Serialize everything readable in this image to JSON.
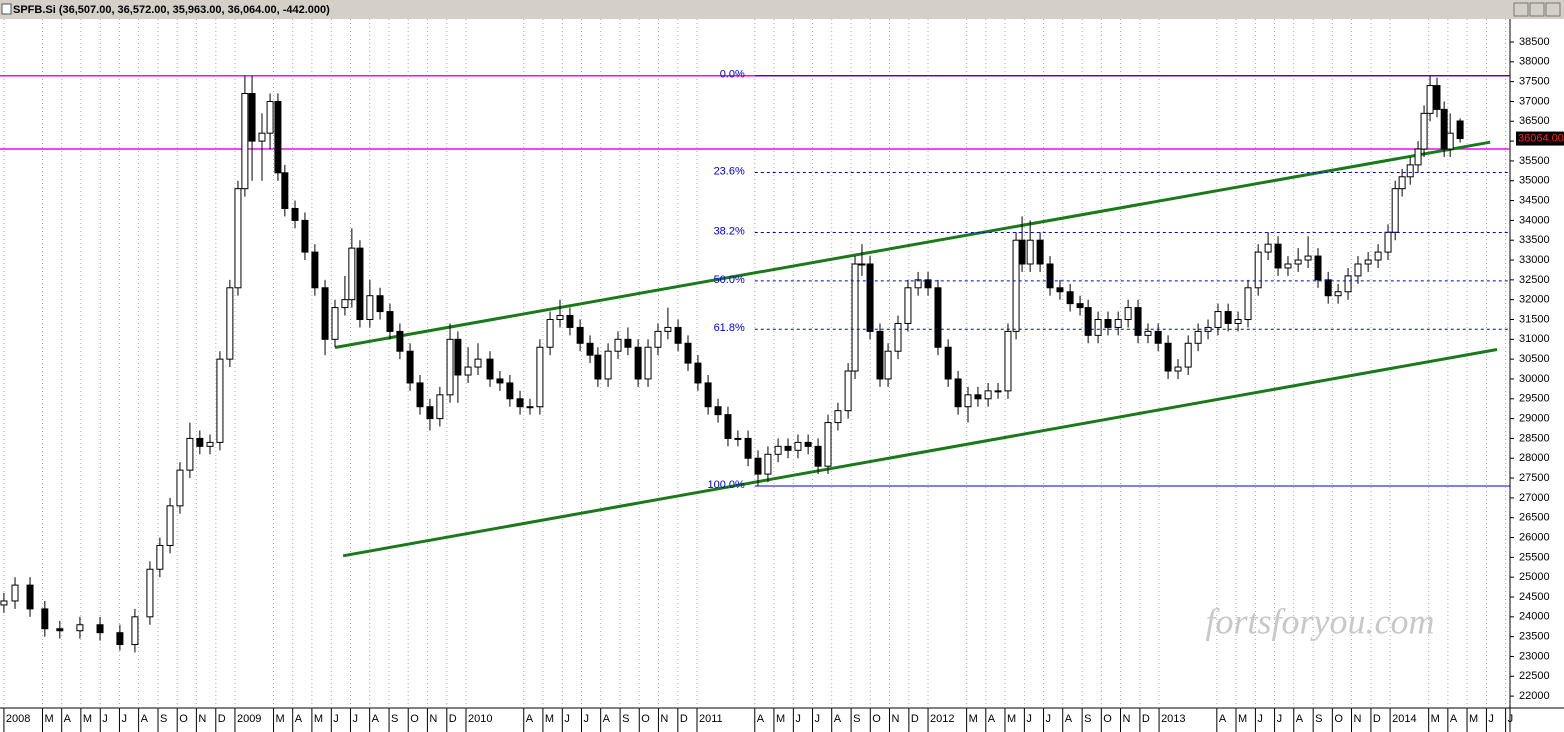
{
  "chart_data": {
    "type": "candlestick",
    "title": "SPFB.Si (36,507.00, 36,572.00, 35,963.00, 36,064.00, -442.000)",
    "watermark": "fortsforyou.com",
    "last_price_label": "36064.00",
    "x": [
      2008.0,
      2008.048,
      2008.113,
      2008.177,
      2008.242,
      2008.329,
      2008.416,
      2008.502,
      2008.567,
      2008.632,
      2008.675,
      2008.719,
      2008.762,
      2008.805,
      2008.848,
      2008.892,
      2008.935,
      2008.978,
      2009.013,
      2009.043,
      2009.074,
      2009.117,
      2009.152,
      2009.186,
      2009.216,
      2009.26,
      2009.303,
      2009.346,
      2009.39,
      2009.433,
      2009.476,
      2009.506,
      2009.541,
      2009.584,
      2009.628,
      2009.671,
      2009.714,
      2009.758,
      2009.801,
      2009.844,
      2009.887,
      2009.931,
      2009.965,
      2010.009,
      2010.052,
      2010.104,
      2010.147,
      2010.19,
      2010.234,
      2010.277,
      2010.32,
      2010.364,
      2010.407,
      2010.45,
      2010.494,
      2010.537,
      2010.571,
      2010.615,
      2010.658,
      2010.701,
      2010.745,
      2010.788,
      2010.831,
      2010.874,
      2010.918,
      2010.961,
      2011.004,
      2011.048,
      2011.091,
      2011.134,
      2011.177,
      2011.221,
      2011.264,
      2011.307,
      2011.351,
      2011.394,
      2011.437,
      2011.481,
      2011.524,
      2011.567,
      2011.61,
      2011.654,
      2011.684,
      2011.714,
      2011.749,
      2011.792,
      2011.827,
      2011.87,
      2011.913,
      2011.957,
      2012.0,
      2012.043,
      2012.087,
      2012.13,
      2012.173,
      2012.216,
      2012.26,
      2012.303,
      2012.346,
      2012.381,
      2012.407,
      2012.442,
      2012.485,
      2012.528,
      2012.571,
      2012.615,
      2012.658,
      2012.693,
      2012.736,
      2012.779,
      2012.823,
      2012.866,
      2012.909,
      2012.952,
      2012.996,
      2013.039,
      2013.082,
      2013.126,
      2013.169,
      2013.212,
      2013.255,
      2013.299,
      2013.342,
      2013.385,
      2013.429,
      2013.472,
      2013.515,
      2013.558,
      2013.602,
      2013.645,
      2013.688,
      2013.732,
      2013.775,
      2013.818,
      2013.861,
      2013.905,
      2013.948,
      2013.991,
      2014.022,
      2014.052,
      2014.087,
      2014.121,
      2014.147,
      2014.173,
      2014.203,
      2014.234,
      2014.26,
      2014.303
    ],
    "open": [
      24300,
      24400,
      24800,
      24200,
      23700,
      23650,
      23800,
      23600,
      23300,
      24000,
      25200,
      25800,
      26800,
      27700,
      28500,
      28300,
      28400,
      30500,
      32300,
      34800,
      37200,
      36000,
      36200,
      37000,
      35200,
      34300,
      34000,
      33200,
      32300,
      31000,
      31800,
      32000,
      33300,
      31500,
      32100,
      31700,
      31200,
      30700,
      29900,
      29300,
      29000,
      29600,
      31000,
      30100,
      30300,
      30500,
      30000,
      29900,
      29500,
      29300,
      29300,
      30800,
      31500,
      31600,
      31300,
      30900,
      30600,
      30000,
      30700,
      31000,
      30800,
      30000,
      30800,
      31200,
      31300,
      30900,
      30400,
      29900,
      29300,
      29100,
      28500,
      28500,
      28000,
      27600,
      28100,
      28300,
      28200,
      28400,
      28300,
      27800,
      28900,
      29200,
      30200,
      32900,
      32900,
      31200,
      30000,
      30700,
      31400,
      32300,
      32500,
      32300,
      30800,
      30000,
      29300,
      29600,
      29500,
      29700,
      29700,
      31200,
      33500,
      32900,
      33500,
      32900,
      32300,
      32200,
      31900,
      31800,
      31100,
      31500,
      31300,
      31500,
      31800,
      31100,
      31200,
      30900,
      30200,
      30300,
      30900,
      31200,
      31300,
      31700,
      31400,
      31500,
      32300,
      33200,
      33400,
      32800,
      32900,
      33000,
      33100,
      32500,
      32100,
      32200,
      32600,
      32900,
      33000,
      33200,
      33700,
      34800,
      35100,
      35400,
      35800,
      36700,
      37400,
      36800,
      35800,
      36507
    ],
    "high": [
      24600,
      25000,
      25000,
      24400,
      23900,
      24000,
      24000,
      23800,
      24200,
      25400,
      26000,
      27000,
      27900,
      28900,
      28700,
      28600,
      30700,
      32500,
      35000,
      37650,
      37650,
      36700,
      37200,
      37200,
      35400,
      34500,
      34200,
      33400,
      32500,
      32000,
      32600,
      33800,
      33500,
      32500,
      32300,
      31900,
      31400,
      30900,
      30100,
      29500,
      29800,
      31400,
      31200,
      30800,
      30900,
      30700,
      30200,
      30100,
      29700,
      29500,
      31000,
      31700,
      32000,
      31800,
      31500,
      31100,
      30800,
      30900,
      31200,
      31300,
      31000,
      31000,
      31400,
      31800,
      31500,
      31100,
      30600,
      30100,
      29500,
      29300,
      28700,
      28700,
      28200,
      28300,
      28500,
      28500,
      28600,
      28600,
      28500,
      29100,
      29400,
      30400,
      33100,
      33400,
      33100,
      31400,
      30900,
      31600,
      32500,
      32700,
      32700,
      32500,
      31000,
      30200,
      29800,
      29800,
      29900,
      29900,
      31400,
      33700,
      34100,
      34000,
      33700,
      33100,
      32500,
      32400,
      32100,
      32000,
      31700,
      31700,
      31700,
      32000,
      32000,
      31400,
      31400,
      31100,
      30500,
      31100,
      31400,
      31500,
      31900,
      31900,
      31700,
      32500,
      33400,
      33700,
      33600,
      33100,
      33300,
      33600,
      33300,
      32700,
      32400,
      32800,
      33100,
      33200,
      33400,
      33900,
      35000,
      35300,
      35600,
      36000,
      36900,
      37650,
      37600,
      37000,
      36700,
      36572
    ],
    "low": [
      24100,
      24200,
      24000,
      23500,
      23450,
      23450,
      23400,
      23150,
      23100,
      23800,
      25000,
      25600,
      26600,
      27500,
      28100,
      28100,
      28200,
      30300,
      32100,
      34600,
      35000,
      35000,
      35800,
      35000,
      34100,
      33800,
      33000,
      32100,
      30600,
      30800,
      31600,
      31800,
      31300,
      31300,
      31500,
      31000,
      30500,
      29700,
      29100,
      28700,
      28800,
      29400,
      29400,
      29900,
      30100,
      29800,
      29700,
      29300,
      29100,
      29100,
      29100,
      30600,
      31300,
      31100,
      30700,
      30400,
      29800,
      29800,
      30500,
      30600,
      29800,
      29800,
      30600,
      31000,
      30700,
      30200,
      29700,
      29100,
      28900,
      28300,
      28300,
      27800,
      27300,
      27400,
      27900,
      28000,
      28000,
      28100,
      27600,
      27600,
      28700,
      29000,
      30000,
      32600,
      31000,
      29800,
      29800,
      30500,
      31200,
      32100,
      32100,
      30600,
      29800,
      29100,
      28900,
      29300,
      29300,
      29500,
      29500,
      31000,
      32700,
      32700,
      32700,
      32100,
      32000,
      31700,
      31600,
      30900,
      30900,
      31100,
      31100,
      31300,
      30900,
      30900,
      30700,
      30000,
      30000,
      30100,
      30700,
      31000,
      31100,
      31200,
      31200,
      31300,
      32100,
      33000,
      32600,
      32600,
      32700,
      32800,
      32300,
      31900,
      31900,
      32000,
      32400,
      32700,
      32800,
      33000,
      33500,
      34600,
      34900,
      35200,
      35600,
      36500,
      36600,
      35600,
      35600,
      35963
    ],
    "close": [
      24400,
      24800,
      24200,
      23700,
      23650,
      23800,
      23600,
      23300,
      24000,
      25200,
      25800,
      26800,
      27700,
      28500,
      28300,
      28400,
      30500,
      32300,
      34800,
      37200,
      36000,
      36200,
      37000,
      35200,
      34300,
      34000,
      33200,
      32300,
      31000,
      31800,
      32000,
      33300,
      31500,
      32100,
      31700,
      31200,
      30700,
      29900,
      29300,
      29000,
      29600,
      31000,
      30100,
      30300,
      30500,
      30000,
      29900,
      29500,
      29300,
      29300,
      30800,
      31500,
      31600,
      31300,
      30900,
      30600,
      30000,
      30700,
      31000,
      30800,
      30000,
      30800,
      31200,
      31300,
      30900,
      30400,
      29900,
      29300,
      29100,
      28500,
      28500,
      28000,
      27600,
      28100,
      28300,
      28200,
      28400,
      28300,
      27800,
      28900,
      29200,
      30200,
      32900,
      32900,
      31200,
      30000,
      30700,
      31400,
      32300,
      32500,
      32300,
      30800,
      30000,
      29300,
      29600,
      29500,
      29700,
      29700,
      31200,
      33500,
      32900,
      33500,
      32900,
      32300,
      32200,
      31900,
      31800,
      31100,
      31500,
      31300,
      31500,
      31800,
      31100,
      31200,
      30900,
      30200,
      30300,
      30900,
      31200,
      31300,
      31700,
      31400,
      31500,
      32300,
      33200,
      33400,
      32800,
      32900,
      33000,
      33100,
      32500,
      32100,
      32200,
      32600,
      32900,
      33000,
      33200,
      33700,
      34800,
      35100,
      35400,
      35800,
      36700,
      37400,
      36800,
      35800,
      36200,
      36064
    ],
    "up_color": "#ffffff",
    "down_color": "#000000",
    "levels": [
      37650,
      35800
    ],
    "level_color": "#ff00ff",
    "fib_from_x": 2011.25,
    "fib_color": "#0000cc",
    "fib_levels": [
      {
        "label": "0.0%",
        "value": 37650
      },
      {
        "label": "23.6%",
        "value": 35207
      },
      {
        "label": "38.2%",
        "value": 33696
      },
      {
        "label": "50.0%",
        "value": 32475
      },
      {
        "label": "61.8%",
        "value": 31254
      },
      {
        "label": "100.0%",
        "value": 27300
      }
    ],
    "trendlines": [
      {
        "x": [
          2009.433,
          2014.433
        ],
        "values": [
          30794,
          35973
        ]
      },
      {
        "x": [
          2009.468,
          2014.463
        ],
        "values": [
          25539,
          30744
        ]
      }
    ],
    "trend_color": "#1a7a1a",
    "grid": "vertical",
    "ylim": [
      21700,
      39080
    ],
    "yticks": [
      22000,
      22500,
      23000,
      23500,
      24000,
      24500,
      25000,
      25500,
      26000,
      26500,
      27000,
      27500,
      28000,
      28500,
      29000,
      29500,
      30000,
      30500,
      31000,
      31500,
      32000,
      32500,
      33000,
      33500,
      34000,
      34500,
      35000,
      35500,
      36000,
      36500,
      37000,
      37500,
      38000,
      38500
    ],
    "xlim": [
      2007.983,
      2014.519
    ],
    "xticks": [
      2008,
      {
        "value": 2008.167,
        "label": "M"
      },
      {
        "value": 2008.25,
        "label": "A"
      },
      {
        "value": 2008.333,
        "label": "M"
      },
      {
        "value": 2008.417,
        "label": "J"
      },
      {
        "value": 2008.5,
        "label": "J"
      },
      {
        "value": 2008.583,
        "label": "A"
      },
      {
        "value": 2008.667,
        "label": "S"
      },
      {
        "value": 2008.75,
        "label": "O"
      },
      {
        "value": 2008.833,
        "label": "N"
      },
      {
        "value": 2008.917,
        "label": "D"
      },
      2009,
      {
        "value": 2009.167,
        "label": "M"
      },
      {
        "value": 2009.25,
        "label": "A"
      },
      {
        "value": 2009.333,
        "label": "M"
      },
      {
        "value": 2009.417,
        "label": "J"
      },
      {
        "value": 2009.5,
        "label": "J"
      },
      {
        "value": 2009.583,
        "label": "A"
      },
      {
        "value": 2009.667,
        "label": "S"
      },
      {
        "value": 2009.75,
        "label": "O"
      },
      {
        "value": 2009.833,
        "label": "N"
      },
      {
        "value": 2009.917,
        "label": "D"
      },
      2010,
      {
        "value": 2010.25,
        "label": "A"
      },
      {
        "value": 2010.333,
        "label": "M"
      },
      {
        "value": 2010.417,
        "label": "J"
      },
      {
        "value": 2010.5,
        "label": "J"
      },
      {
        "value": 2010.583,
        "label": "A"
      },
      {
        "value": 2010.667,
        "label": "S"
      },
      {
        "value": 2010.75,
        "label": "O"
      },
      {
        "value": 2010.833,
        "label": "N"
      },
      {
        "value": 2010.917,
        "label": "D"
      },
      2011,
      {
        "value": 2011.25,
        "label": "A"
      },
      {
        "value": 2011.333,
        "label": "M"
      },
      {
        "value": 2011.417,
        "label": "J"
      },
      {
        "value": 2011.5,
        "label": "J"
      },
      {
        "value": 2011.583,
        "label": "A"
      },
      {
        "value": 2011.667,
        "label": "S"
      },
      {
        "value": 2011.75,
        "label": "O"
      },
      {
        "value": 2011.833,
        "label": "N"
      },
      {
        "value": 2011.917,
        "label": "D"
      },
      2012,
      {
        "value": 2012.167,
        "label": "M"
      },
      {
        "value": 2012.25,
        "label": "A"
      },
      {
        "value": 2012.333,
        "label": "M"
      },
      {
        "value": 2012.417,
        "label": "J"
      },
      {
        "value": 2012.5,
        "label": "J"
      },
      {
        "value": 2012.583,
        "label": "A"
      },
      {
        "value": 2012.667,
        "label": "S"
      },
      {
        "value": 2012.75,
        "label": "O"
      },
      {
        "value": 2012.833,
        "label": "N"
      },
      {
        "value": 2012.917,
        "label": "D"
      },
      2013,
      {
        "value": 2013.25,
        "label": "A"
      },
      {
        "value": 2013.333,
        "label": "M"
      },
      {
        "value": 2013.417,
        "label": "J"
      },
      {
        "value": 2013.5,
        "label": "J"
      },
      {
        "value": 2013.583,
        "label": "A"
      },
      {
        "value": 2013.667,
        "label": "S"
      },
      {
        "value": 2013.75,
        "label": "O"
      },
      {
        "value": 2013.833,
        "label": "N"
      },
      {
        "value": 2013.917,
        "label": "D"
      },
      2014,
      {
        "value": 2014.167,
        "label": "M"
      },
      {
        "value": 2014.25,
        "label": "A"
      },
      {
        "value": 2014.333,
        "label": "M"
      },
      {
        "value": 2014.417,
        "label": "J"
      },
      {
        "value": 2014.5,
        "label": "J"
      }
    ]
  }
}
